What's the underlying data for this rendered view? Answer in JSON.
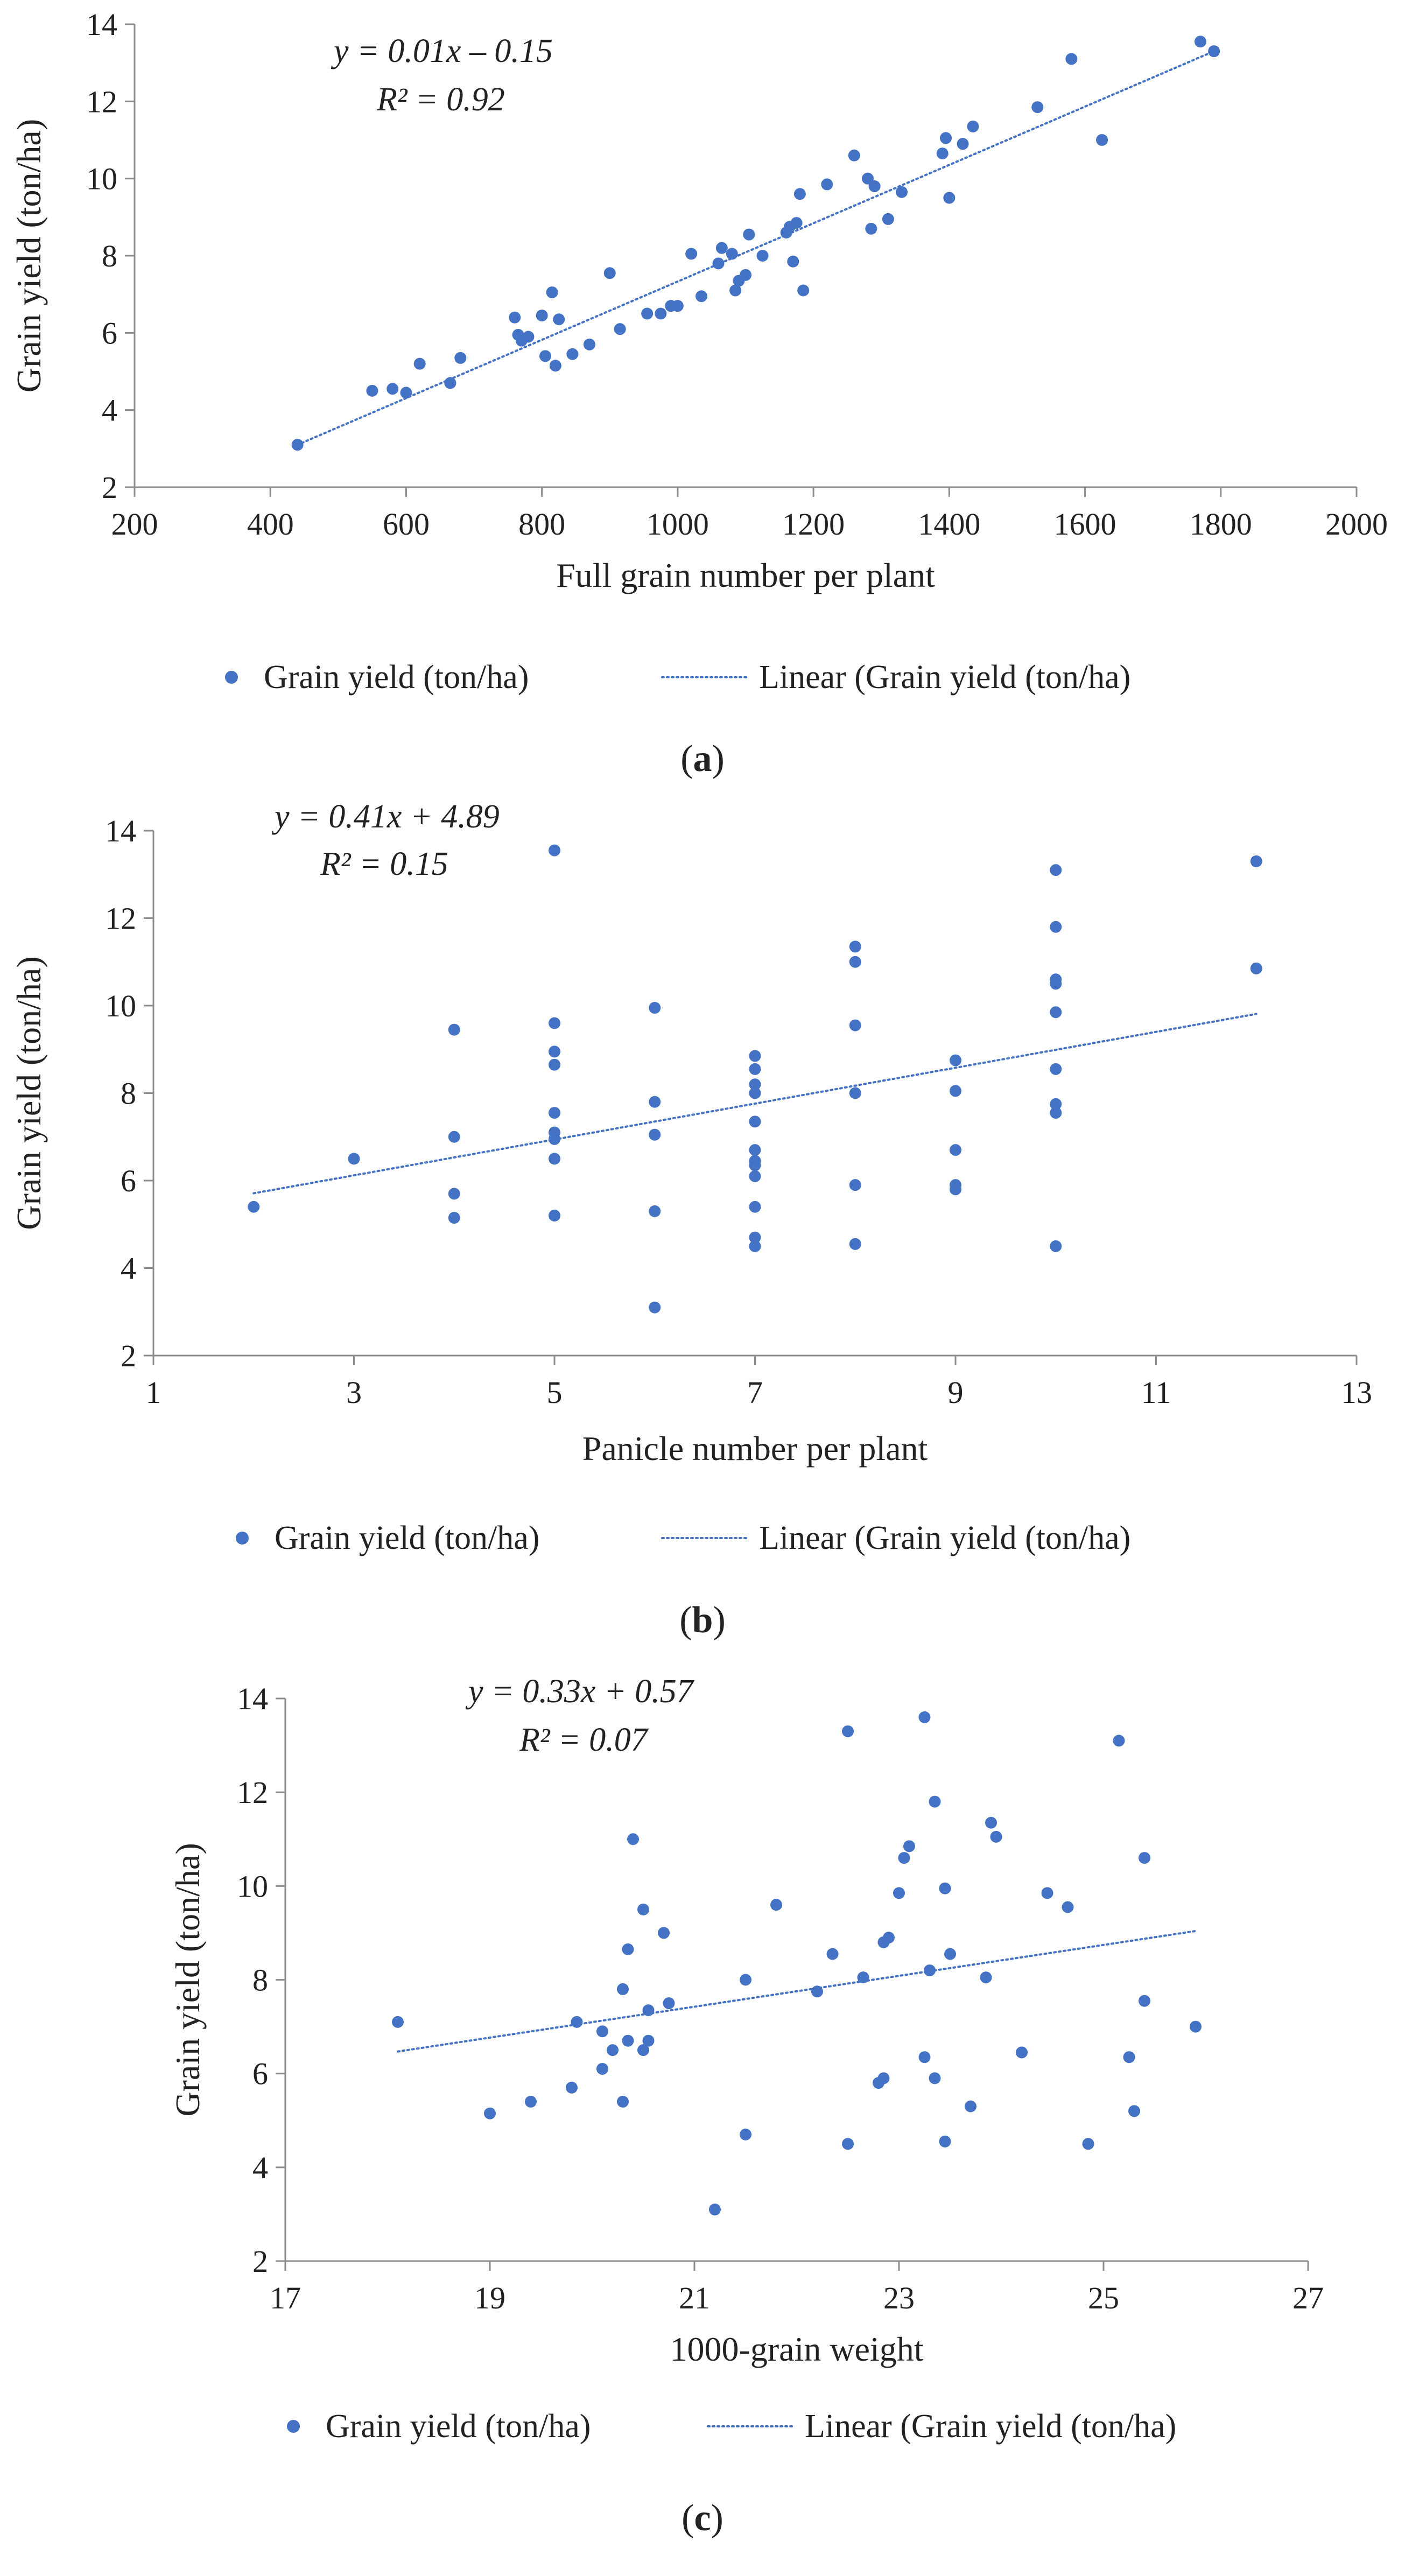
{
  "colors": {
    "marker": "#4472C4",
    "trend": "#4472C4",
    "axis": "#8C8C8C",
    "text": "#222222"
  },
  "chart_data": [
    {
      "type": "scatter",
      "panel": "a",
      "caption": {
        "open": "(",
        "letter": "a",
        "close": ")"
      },
      "xlabel": "Full grain number per plant",
      "ylabel": "Grain yield (ton/ha)",
      "xlim": [
        200,
        2000
      ],
      "ylim": [
        2,
        14
      ],
      "xticks": [
        200,
        400,
        600,
        800,
        1000,
        1200,
        1400,
        1600,
        1800,
        2000
      ],
      "yticks": [
        2,
        4,
        6,
        8,
        10,
        12,
        14
      ],
      "grid": false,
      "equation": "y = 0.01x – 0.15",
      "r2": "R² = 0.92",
      "legend": {
        "position": "bottom",
        "series_label": "Grain yield (ton/ha)",
        "trend_label": "Linear  (Grain yield (ton/ha)"
      },
      "trendline": {
        "x": [
          440,
          1790
        ],
        "y": [
          3.1,
          13.3
        ]
      },
      "points": [
        [
          440,
          3.1
        ],
        [
          550,
          4.5
        ],
        [
          580,
          4.55
        ],
        [
          600,
          4.45
        ],
        [
          620,
          5.2
        ],
        [
          665,
          4.7
        ],
        [
          680,
          5.35
        ],
        [
          760,
          6.4
        ],
        [
          765,
          5.95
        ],
        [
          770,
          5.8
        ],
        [
          780,
          5.9
        ],
        [
          800,
          6.45
        ],
        [
          805,
          5.4
        ],
        [
          815,
          7.05
        ],
        [
          820,
          5.15
        ],
        [
          825,
          6.35
        ],
        [
          845,
          5.45
        ],
        [
          870,
          5.7
        ],
        [
          900,
          7.55
        ],
        [
          915,
          6.1
        ],
        [
          955,
          6.5
        ],
        [
          975,
          6.5
        ],
        [
          990,
          6.7
        ],
        [
          1000,
          6.7
        ],
        [
          1020,
          8.05
        ],
        [
          1035,
          6.95
        ],
        [
          1060,
          7.8
        ],
        [
          1065,
          8.2
        ],
        [
          1080,
          8.05
        ],
        [
          1085,
          7.1
        ],
        [
          1090,
          7.35
        ],
        [
          1100,
          7.5
        ],
        [
          1105,
          8.55
        ],
        [
          1125,
          8.0
        ],
        [
          1160,
          8.6
        ],
        [
          1165,
          8.75
        ],
        [
          1170,
          7.85
        ],
        [
          1175,
          8.85
        ],
        [
          1180,
          9.6
        ],
        [
          1185,
          7.1
        ],
        [
          1220,
          9.85
        ],
        [
          1260,
          10.6
        ],
        [
          1280,
          10.0
        ],
        [
          1285,
          8.7
        ],
        [
          1290,
          9.8
        ],
        [
          1310,
          8.95
        ],
        [
          1330,
          9.65
        ],
        [
          1390,
          10.65
        ],
        [
          1395,
          11.05
        ],
        [
          1400,
          9.5
        ],
        [
          1420,
          10.9
        ],
        [
          1435,
          11.35
        ],
        [
          1530,
          11.85
        ],
        [
          1580,
          13.1
        ],
        [
          1625,
          11.0
        ],
        [
          1770,
          13.55
        ],
        [
          1790,
          13.3
        ]
      ]
    },
    {
      "type": "scatter",
      "panel": "b",
      "caption": {
        "open": "(",
        "letter": "b",
        "close": ")"
      },
      "xlabel": "Panicle number per plant",
      "ylabel": "Grain yield (ton/ha)",
      "xlim": [
        1,
        13
      ],
      "ylim": [
        2,
        14
      ],
      "xticks": [
        1,
        3,
        5,
        7,
        9,
        11,
        13
      ],
      "yticks": [
        2,
        4,
        6,
        8,
        10,
        12,
        14
      ],
      "grid": false,
      "equation": "y = 0.41x + 4.89",
      "r2": "R² = 0.15",
      "legend": {
        "position": "bottom",
        "series_label": "Grain yield (ton/ha)",
        "trend_label": "Linear  (Grain yield (ton/ha)"
      },
      "trendline": {
        "x": [
          2,
          12
        ],
        "y": [
          5.71,
          9.81
        ]
      },
      "points": [
        [
          2,
          5.4
        ],
        [
          3,
          6.5
        ],
        [
          4,
          9.45
        ],
        [
          4,
          7.0
        ],
        [
          4,
          5.7
        ],
        [
          4,
          5.15
        ],
        [
          5,
          13.55
        ],
        [
          5,
          9.6
        ],
        [
          5,
          8.95
        ],
        [
          5,
          8.65
        ],
        [
          5,
          7.55
        ],
        [
          5,
          7.1
        ],
        [
          5,
          6.95
        ],
        [
          5,
          6.5
        ],
        [
          5,
          5.2
        ],
        [
          6,
          9.95
        ],
        [
          6,
          7.8
        ],
        [
          6,
          7.05
        ],
        [
          6,
          5.3
        ],
        [
          6,
          3.1
        ],
        [
          7,
          8.85
        ],
        [
          7,
          8.55
        ],
        [
          7,
          8.2
        ],
        [
          7,
          8.0
        ],
        [
          7,
          7.35
        ],
        [
          7,
          6.7
        ],
        [
          7,
          6.45
        ],
        [
          7,
          6.35
        ],
        [
          7,
          6.1
        ],
        [
          7,
          5.4
        ],
        [
          7,
          4.7
        ],
        [
          7,
          4.5
        ],
        [
          8,
          11.35
        ],
        [
          8,
          11.0
        ],
        [
          8,
          9.55
        ],
        [
          8,
          8.0
        ],
        [
          8,
          5.9
        ],
        [
          8,
          4.55
        ],
        [
          9,
          8.75
        ],
        [
          9,
          8.05
        ],
        [
          9,
          6.7
        ],
        [
          9,
          5.9
        ],
        [
          9,
          5.8
        ],
        [
          10,
          13.1
        ],
        [
          10,
          11.8
        ],
        [
          10,
          10.6
        ],
        [
          10,
          10.5
        ],
        [
          10,
          9.85
        ],
        [
          10,
          8.55
        ],
        [
          10,
          7.75
        ],
        [
          10,
          7.55
        ],
        [
          10,
          4.5
        ],
        [
          12,
          13.3
        ],
        [
          12,
          10.85
        ]
      ]
    },
    {
      "type": "scatter",
      "panel": "c",
      "caption": {
        "open": "(",
        "letter": "c",
        "close": ")"
      },
      "xlabel": "1000-grain weight",
      "ylabel": "Grain yield (ton/ha)",
      "xlim": [
        17,
        27
      ],
      "ylim": [
        2,
        14
      ],
      "xticks": [
        17,
        19,
        21,
        23,
        25,
        27
      ],
      "yticks": [
        2,
        4,
        6,
        8,
        10,
        12,
        14
      ],
      "grid": false,
      "equation": "y = 0.33x + 0.57",
      "r2": "R² = 0.07",
      "legend": {
        "position": "bottom",
        "series_label": "Grain yield (ton/ha)",
        "trend_label": "Linear  (Grain yield (ton/ha)"
      },
      "trendline": {
        "x": [
          18.1,
          25.9
        ],
        "y": [
          6.47,
          9.04
        ]
      },
      "points": [
        [
          18.1,
          7.1
        ],
        [
          19.0,
          5.15
        ],
        [
          19.4,
          5.4
        ],
        [
          19.8,
          5.7
        ],
        [
          19.85,
          7.1
        ],
        [
          20.1,
          6.1
        ],
        [
          20.1,
          6.9
        ],
        [
          20.2,
          6.5
        ],
        [
          20.3,
          5.4
        ],
        [
          20.3,
          7.8
        ],
        [
          20.35,
          8.65
        ],
        [
          20.35,
          6.7
        ],
        [
          20.4,
          11.0
        ],
        [
          20.5,
          6.5
        ],
        [
          20.5,
          9.5
        ],
        [
          20.55,
          7.35
        ],
        [
          20.55,
          6.7
        ],
        [
          20.7,
          9.0
        ],
        [
          20.75,
          7.5
        ],
        [
          21.2,
          3.1
        ],
        [
          21.5,
          4.7
        ],
        [
          21.5,
          8.0
        ],
        [
          21.8,
          9.6
        ],
        [
          22.2,
          7.75
        ],
        [
          22.35,
          8.55
        ],
        [
          22.5,
          13.3
        ],
        [
          22.5,
          4.5
        ],
        [
          22.65,
          8.05
        ],
        [
          22.8,
          5.8
        ],
        [
          22.85,
          5.9
        ],
        [
          22.85,
          8.8
        ],
        [
          22.9,
          8.9
        ],
        [
          23.0,
          9.85
        ],
        [
          23.05,
          10.6
        ],
        [
          23.1,
          10.85
        ],
        [
          23.25,
          13.6
        ],
        [
          23.25,
          6.35
        ],
        [
          23.3,
          8.2
        ],
        [
          23.35,
          11.8
        ],
        [
          23.35,
          5.9
        ],
        [
          23.45,
          9.95
        ],
        [
          23.45,
          4.55
        ],
        [
          23.5,
          8.55
        ],
        [
          23.7,
          5.3
        ],
        [
          23.85,
          8.05
        ],
        [
          23.9,
          11.35
        ],
        [
          23.95,
          11.05
        ],
        [
          24.2,
          6.45
        ],
        [
          24.45,
          9.85
        ],
        [
          24.65,
          9.55
        ],
        [
          24.85,
          4.5
        ],
        [
          25.15,
          13.1
        ],
        [
          25.25,
          6.35
        ],
        [
          25.3,
          5.2
        ],
        [
          25.4,
          10.6
        ],
        [
          25.4,
          7.55
        ],
        [
          25.9,
          7.0
        ]
      ]
    }
  ]
}
